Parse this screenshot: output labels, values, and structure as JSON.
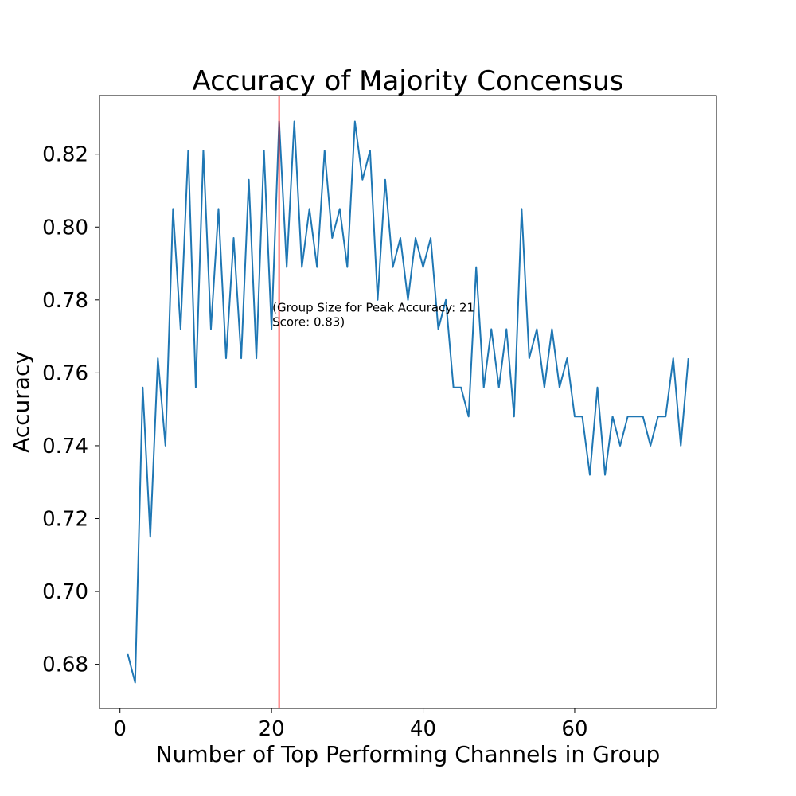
{
  "chart_data": {
    "type": "line",
    "title": "Accuracy of Majority Concensus",
    "xlabel": "Number of Top Performing Channels in Group",
    "ylabel": "Accuracy",
    "xlim": [
      -2.7,
      78.7
    ],
    "ylim": [
      0.6679,
      0.8361
    ],
    "xticks": [
      0,
      20,
      40,
      60
    ],
    "xtick_labels": [
      "0",
      "20",
      "40",
      "60"
    ],
    "yticks": [
      0.68,
      0.7,
      0.72,
      0.74,
      0.76,
      0.78,
      0.8,
      0.82
    ],
    "ytick_labels": [
      "0.68",
      "0.70",
      "0.72",
      "0.74",
      "0.76",
      "0.78",
      "0.80",
      "0.82"
    ],
    "grid": false,
    "series": [
      {
        "color": "#1f77b4",
        "x": [
          1,
          2,
          3,
          4,
          5,
          6,
          7,
          8,
          9,
          10,
          11,
          12,
          13,
          14,
          15,
          16,
          17,
          18,
          19,
          20,
          21,
          22,
          23,
          24,
          25,
          26,
          27,
          28,
          29,
          30,
          31,
          32,
          33,
          34,
          35,
          36,
          37,
          38,
          39,
          40,
          41,
          42,
          43,
          44,
          45,
          46,
          47,
          48,
          49,
          50,
          51,
          52,
          53,
          54,
          55,
          56,
          57,
          58,
          59,
          60,
          61,
          62,
          63,
          64,
          65,
          66,
          67,
          68,
          69,
          70,
          71,
          72,
          73,
          74,
          75
        ],
        "y": [
          0.683,
          0.675,
          0.756,
          0.715,
          0.764,
          0.74,
          0.805,
          0.772,
          0.821,
          0.756,
          0.821,
          0.772,
          0.805,
          0.764,
          0.797,
          0.764,
          0.813,
          0.764,
          0.821,
          0.772,
          0.829,
          0.789,
          0.829,
          0.789,
          0.805,
          0.789,
          0.821,
          0.797,
          0.805,
          0.789,
          0.829,
          0.813,
          0.821,
          0.78,
          0.813,
          0.789,
          0.797,
          0.78,
          0.797,
          0.789,
          0.797,
          0.772,
          0.78,
          0.756,
          0.756,
          0.748,
          0.789,
          0.756,
          0.772,
          0.756,
          0.772,
          0.748,
          0.805,
          0.764,
          0.772,
          0.756,
          0.772,
          0.756,
          0.764,
          0.748,
          0.748,
          0.732,
          0.756,
          0.732,
          0.748,
          0.74,
          0.748,
          0.748,
          0.748,
          0.74,
          0.748,
          0.748,
          0.764,
          0.74,
          0.764
        ]
      }
    ],
    "vline": {
      "x": 21,
      "color": "#ff0000"
    },
    "annotation": {
      "x": 20,
      "y": 0.7755,
      "line1": "(Group Size for Peak Accuracy: 21",
      "line2": "Score: 0.83)"
    }
  }
}
